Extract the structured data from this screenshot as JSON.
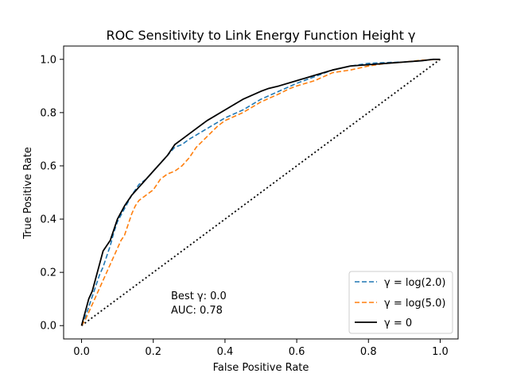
{
  "chart_data": {
    "type": "line",
    "title": "ROC Sensitivity to Link Energy Function Height γ",
    "xlabel": "False Positive Rate",
    "ylabel": "True Positive Rate",
    "xlim": [
      -0.05,
      1.05
    ],
    "ylim": [
      -0.05,
      1.05
    ],
    "xticks": [
      0.0,
      0.2,
      0.4,
      0.6,
      0.8,
      1.0
    ],
    "yticks": [
      0.0,
      0.2,
      0.4,
      0.6,
      0.8,
      1.0
    ],
    "xtick_labels": [
      "0.0",
      "0.2",
      "0.4",
      "0.6",
      "0.8",
      "1.0"
    ],
    "ytick_labels": [
      "0.0",
      "0.2",
      "0.4",
      "0.6",
      "0.8",
      "1.0"
    ],
    "legend_position": "lower-right",
    "annotations": [
      "Best γ: 0.0",
      "AUC: 0.78"
    ],
    "series": [
      {
        "name": "γ = log(2.0)",
        "legend_main": "γ = log(2.0)",
        "color": "#1f77b4",
        "style": "dashed",
        "x": [
          0.0,
          0.01,
          0.02,
          0.03,
          0.04,
          0.05,
          0.06,
          0.07,
          0.08,
          0.09,
          0.1,
          0.12,
          0.14,
          0.16,
          0.18,
          0.2,
          0.22,
          0.24,
          0.26,
          0.28,
          0.3,
          0.35,
          0.4,
          0.45,
          0.5,
          0.55,
          0.6,
          0.65,
          0.7,
          0.75,
          0.8,
          0.85,
          0.9,
          0.95,
          0.98,
          1.0
        ],
        "y": [
          0.0,
          0.03,
          0.07,
          0.11,
          0.15,
          0.19,
          0.22,
          0.26,
          0.3,
          0.35,
          0.39,
          0.44,
          0.49,
          0.53,
          0.55,
          0.58,
          0.61,
          0.64,
          0.67,
          0.68,
          0.7,
          0.74,
          0.78,
          0.81,
          0.85,
          0.88,
          0.91,
          0.935,
          0.96,
          0.975,
          0.985,
          0.988,
          0.99,
          0.995,
          1.0,
          1.0
        ]
      },
      {
        "name": "γ = log(5.0)",
        "legend_main": "γ = log(5.0)",
        "color": "#ff7f0e",
        "style": "dashed",
        "x": [
          0.0,
          0.01,
          0.02,
          0.03,
          0.04,
          0.05,
          0.06,
          0.07,
          0.08,
          0.09,
          0.1,
          0.11,
          0.12,
          0.13,
          0.14,
          0.15,
          0.16,
          0.18,
          0.2,
          0.22,
          0.24,
          0.26,
          0.28,
          0.3,
          0.32,
          0.35,
          0.38,
          0.4,
          0.45,
          0.5,
          0.55,
          0.58,
          0.6,
          0.65,
          0.7,
          0.75,
          0.8,
          0.85,
          0.9,
          0.95,
          1.0
        ],
        "y": [
          0.0,
          0.02,
          0.05,
          0.08,
          0.11,
          0.14,
          0.17,
          0.2,
          0.23,
          0.26,
          0.29,
          0.32,
          0.34,
          0.38,
          0.42,
          0.45,
          0.47,
          0.49,
          0.51,
          0.55,
          0.57,
          0.58,
          0.6,
          0.63,
          0.67,
          0.71,
          0.75,
          0.77,
          0.8,
          0.84,
          0.87,
          0.89,
          0.9,
          0.92,
          0.95,
          0.96,
          0.975,
          0.985,
          0.99,
          0.997,
          1.0
        ]
      },
      {
        "name": "γ = 0",
        "legend_main": "γ = 0",
        "color": "#000000",
        "style": "solid",
        "x": [
          0.0,
          0.01,
          0.02,
          0.03,
          0.04,
          0.05,
          0.06,
          0.08,
          0.1,
          0.12,
          0.14,
          0.16,
          0.18,
          0.2,
          0.22,
          0.24,
          0.26,
          0.28,
          0.3,
          0.35,
          0.4,
          0.45,
          0.5,
          0.52,
          0.55,
          0.6,
          0.65,
          0.7,
          0.75,
          0.8,
          0.85,
          0.9,
          0.95,
          0.98,
          1.0
        ],
        "y": [
          0.0,
          0.05,
          0.1,
          0.13,
          0.18,
          0.23,
          0.28,
          0.32,
          0.4,
          0.45,
          0.49,
          0.52,
          0.55,
          0.58,
          0.61,
          0.64,
          0.68,
          0.7,
          0.72,
          0.77,
          0.81,
          0.85,
          0.88,
          0.89,
          0.9,
          0.92,
          0.94,
          0.96,
          0.975,
          0.98,
          0.985,
          0.99,
          0.995,
          1.0,
          1.0
        ]
      },
      {
        "name": "chance",
        "color": "#000000",
        "style": "dotted",
        "x": [
          0.0,
          1.0
        ],
        "y": [
          0.0,
          1.0
        ]
      }
    ]
  }
}
